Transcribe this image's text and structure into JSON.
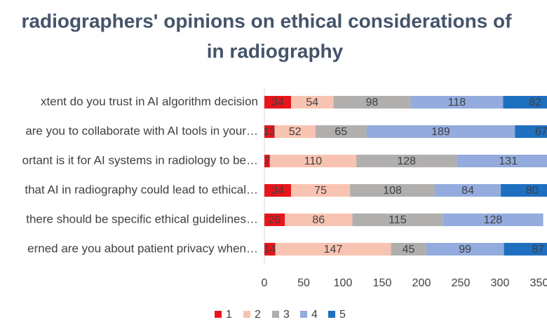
{
  "chart_data": {
    "type": "stacked-bar-horizontal",
    "title": [
      "radiographers' opinions on ethical considerations of",
      "in radiography"
    ],
    "categories": [
      "xtent do you trust in AI algorithm decision",
      "are you to collaborate with AI tools in your…",
      "ortant is it for AI systems in radiology to be…",
      "that AI in radiography could lead to ethical…",
      "there should be specific ethical guidelines…",
      "erned are you about patient privacy when…"
    ],
    "series": [
      {
        "name": "1",
        "color": "#e8151b",
        "values": [
          34,
          13,
          7,
          34,
          26,
          14
        ]
      },
      {
        "name": "2",
        "color": "#f9c3b2",
        "values": [
          54,
          52,
          110,
          75,
          86,
          147
        ]
      },
      {
        "name": "3",
        "color": "#b1afae",
        "values": [
          98,
          65,
          128,
          108,
          115,
          45
        ]
      },
      {
        "name": "4",
        "color": "#93abdd",
        "values": [
          118,
          189,
          131,
          84,
          128,
          99
        ]
      },
      {
        "name": "5",
        "color": "#1f6fc0",
        "values": [
          82,
          67,
          null,
          80,
          null,
          87
        ]
      }
    ],
    "xlim": [
      0,
      400
    ],
    "xticks": [
      0,
      50,
      100,
      150,
      200,
      250,
      300,
      350
    ],
    "legend": "bottom"
  }
}
